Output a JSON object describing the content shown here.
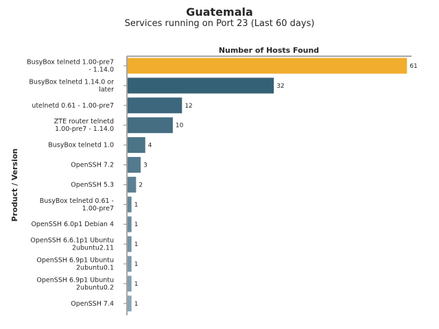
{
  "title": "Guatemala",
  "subtitle": "Services running on Port 23 (Last 60 days)",
  "chart_data": {
    "type": "bar",
    "orientation": "horizontal",
    "xlabel": "Number of Hosts Found",
    "xlabel_position": "top",
    "ylabel": "Product / Version",
    "xlim": [
      0,
      62
    ],
    "grid": false,
    "categories": [
      [
        "BusyBox telnetd 1.00-pre7",
        "- 1.14.0"
      ],
      [
        "BusyBox telnetd 1.14.0 or",
        "later"
      ],
      [
        "utelnetd 0.61 - 1.00-pre7"
      ],
      [
        "ZTE router telnetd",
        "1.00-pre7 - 1.14.0"
      ],
      [
        "BusyBox telnetd 1.0"
      ],
      [
        "OpenSSH 7.2"
      ],
      [
        "OpenSSH 5.3"
      ],
      [
        "BusyBox telnetd 0.61 -",
        "1.00-pre7"
      ],
      [
        "OpenSSH 6.0p1 Debian 4"
      ],
      [
        "OpenSSH 6.6.1p1 Ubuntu",
        "2ubuntu2.11"
      ],
      [
        "OpenSSH 6.9p1 Ubuntu",
        "2ubuntu0.1"
      ],
      [
        "OpenSSH 6.9p1 Ubuntu",
        "2ubuntu0.2"
      ],
      [
        "OpenSSH 7.4"
      ]
    ],
    "values": [
      61,
      32,
      12,
      10,
      4,
      3,
      2,
      1,
      1,
      1,
      1,
      1,
      1
    ],
    "colors": {
      "highlight": "#f0ad2e",
      "dark": "#356176",
      "light": "#8ba6b6",
      "axis": "#888888"
    }
  }
}
